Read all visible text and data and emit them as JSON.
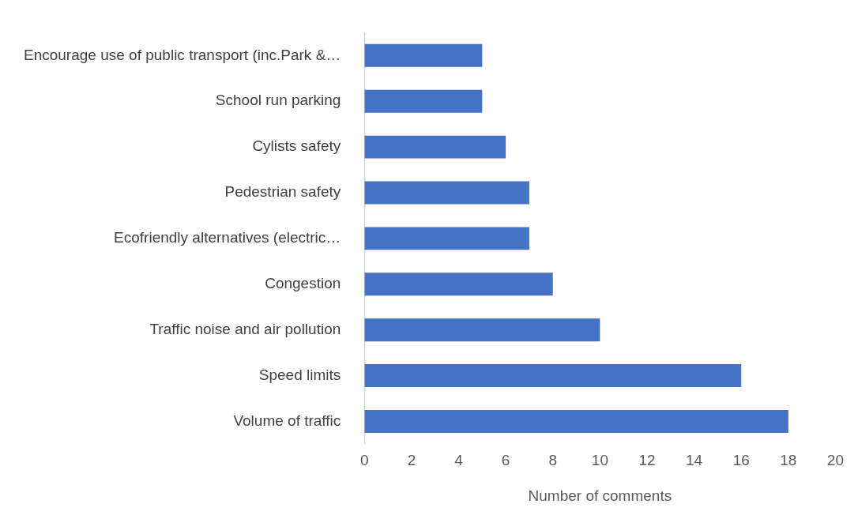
{
  "chart_data": {
    "type": "bar",
    "orientation": "horizontal",
    "xlabel": "Number of comments",
    "categories": [
      "Encourage use of public transport (inc.Park &…",
      "School run parking",
      "Cylists safety",
      "Pedestrian safety",
      "Ecofriendly alternatives (electric…",
      "Congestion",
      "Traffic noise and air pollution",
      "Speed limits",
      "Volume of traffic"
    ],
    "values": [
      5,
      5,
      6,
      7,
      7,
      8,
      10,
      16,
      18
    ],
    "color": "#4472c4",
    "xlim": [
      0,
      20
    ],
    "xticks": [
      0,
      2,
      4,
      6,
      8,
      10,
      12,
      14,
      16,
      18,
      20
    ],
    "grid": false,
    "legend": false
  }
}
